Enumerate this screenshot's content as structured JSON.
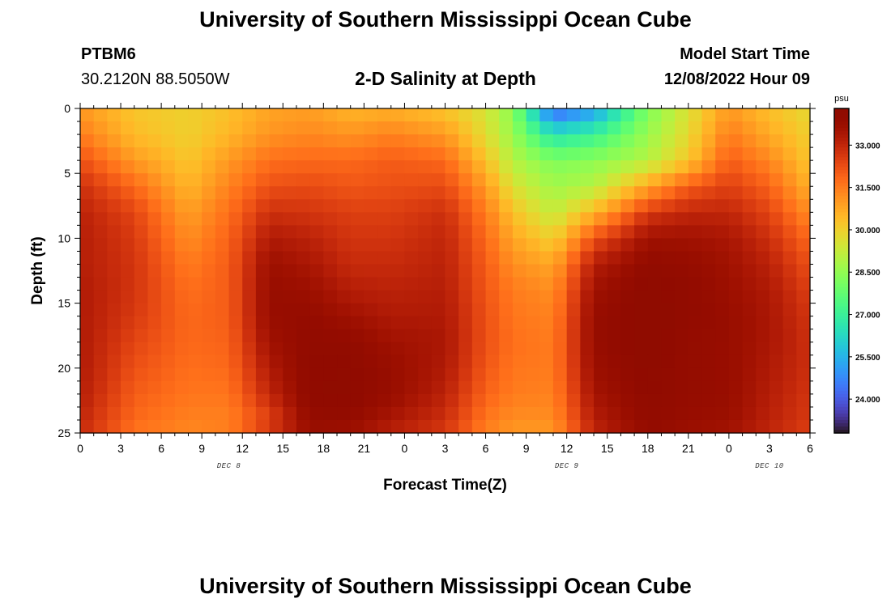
{
  "header": {
    "title": "University of Southern Mississippi Ocean Cube",
    "station_id": "PTBM6",
    "station_coords": "30.2120N  88.5050W",
    "chart_heading": "2-D Salinity at Depth",
    "model_start_label": "Model Start Time",
    "model_start_value": "12/08/2022 Hour 09"
  },
  "footer": {
    "title": "University of Southern Mississippi Ocean Cube"
  },
  "chart_data": {
    "type": "heatmap",
    "title": "2-D Salinity at Depth",
    "xlabel": "Forecast Time(Z)",
    "ylabel": "Depth (ft)",
    "x_hours_range": [
      0,
      54
    ],
    "x_tick_labels": [
      "0",
      "3",
      "6",
      "9",
      "12",
      "15",
      "18",
      "21",
      "0",
      "3",
      "6",
      "9",
      "12",
      "15",
      "18",
      "21",
      "0",
      "3",
      "6"
    ],
    "x_tick_hours": [
      0,
      3,
      6,
      9,
      12,
      15,
      18,
      21,
      24,
      27,
      30,
      33,
      36,
      39,
      42,
      45,
      48,
      51,
      54
    ],
    "date_labels": [
      {
        "label": "DEC 8",
        "hour": 11
      },
      {
        "label": "DEC 9",
        "hour": 36
      },
      {
        "label": "DEC 10",
        "hour": 51
      }
    ],
    "ylim": [
      0,
      25
    ],
    "y_ticks": [
      0,
      5,
      10,
      15,
      20,
      25
    ],
    "y_inverted": true,
    "colorbar": {
      "unit": "psu",
      "min": 22.8,
      "max": 34.3,
      "ticks": [
        33.0,
        31.5,
        30.0,
        28.5,
        27.0,
        25.5,
        24.0
      ],
      "tick_labels": [
        "33.000",
        "31.500",
        "30.000",
        "28.500",
        "27.000",
        "25.500",
        "24.000"
      ],
      "colormap": "turbo"
    },
    "grid": {
      "nx": 54,
      "ny": 25,
      "depth_profile_ft": [
        0,
        2,
        4,
        6,
        8,
        10,
        12,
        14,
        16,
        18,
        20,
        22,
        24,
        25
      ],
      "time_anchors": [
        {
          "hour": 0,
          "profile": [
            31.0,
            31.5,
            32.2,
            32.8,
            33.1,
            33.2,
            33.2,
            33.3,
            33.3,
            33.3,
            33.3,
            33.2,
            33.0,
            32.9
          ]
        },
        {
          "hour": 4,
          "profile": [
            30.2,
            30.4,
            31.0,
            31.8,
            32.4,
            32.6,
            32.7,
            32.7,
            32.6,
            32.4,
            32.2,
            32.0,
            31.8,
            31.6
          ]
        },
        {
          "hour": 8,
          "profile": [
            30.0,
            30.0,
            30.2,
            30.5,
            30.9,
            31.2,
            31.5,
            31.7,
            31.8,
            31.8,
            31.7,
            31.6,
            31.4,
            31.3
          ]
        },
        {
          "hour": 11,
          "profile": [
            30.3,
            30.5,
            31.0,
            31.4,
            31.7,
            31.9,
            32.0,
            32.0,
            32.0,
            31.9,
            31.8,
            31.6,
            31.4,
            31.5
          ]
        },
        {
          "hour": 14,
          "profile": [
            30.8,
            31.1,
            31.7,
            32.2,
            32.8,
            33.3,
            33.7,
            33.8,
            33.8,
            33.6,
            33.3,
            33.0,
            32.4,
            32.8
          ]
        },
        {
          "hour": 17,
          "profile": [
            30.9,
            31.3,
            31.8,
            32.3,
            32.7,
            33.1,
            33.4,
            33.7,
            33.9,
            34.0,
            34.1,
            34.1,
            33.9,
            33.7
          ]
        },
        {
          "hour": 20,
          "profile": [
            30.5,
            31.1,
            31.8,
            32.1,
            32.5,
            32.7,
            32.9,
            33.2,
            33.6,
            34.0,
            34.1,
            34.2,
            33.9,
            33.6
          ]
        },
        {
          "hour": 23,
          "profile": [
            30.6,
            31.4,
            32.0,
            32.2,
            32.5,
            32.7,
            32.9,
            33.1,
            33.3,
            33.6,
            33.8,
            33.8,
            33.4,
            33.1
          ]
        },
        {
          "hour": 27,
          "profile": [
            30.2,
            31.0,
            31.8,
            32.3,
            32.8,
            33.0,
            33.1,
            33.2,
            33.3,
            33.4,
            33.3,
            33.1,
            32.8,
            32.6
          ]
        },
        {
          "hour": 30,
          "profile": [
            29.5,
            29.7,
            30.3,
            31.0,
            31.5,
            31.8,
            32.0,
            32.1,
            32.2,
            32.2,
            32.1,
            31.9,
            31.6,
            31.4
          ]
        },
        {
          "hour": 32,
          "profile": [
            28.4,
            28.6,
            29.0,
            29.6,
            30.3,
            30.8,
            31.2,
            31.5,
            31.6,
            31.7,
            31.6,
            31.5,
            31.2,
            31.0
          ]
        },
        {
          "hour": 35,
          "profile": [
            24.0,
            26.5,
            28.2,
            28.7,
            29.2,
            30.0,
            30.8,
            31.2,
            31.4,
            31.5,
            31.5,
            31.4,
            31.2,
            31.0
          ]
        },
        {
          "hour": 38,
          "profile": [
            25.0,
            27.0,
            28.4,
            29.0,
            30.5,
            32.2,
            33.2,
            33.6,
            33.8,
            33.8,
            33.7,
            33.5,
            33.2,
            33.0
          ]
        },
        {
          "hour": 42,
          "profile": [
            28.2,
            28.6,
            29.0,
            30.8,
            32.6,
            33.6,
            34.0,
            34.2,
            34.3,
            34.3,
            34.2,
            34.1,
            34.0,
            33.9
          ]
        },
        {
          "hour": 45,
          "profile": [
            29.6,
            29.8,
            30.2,
            32.0,
            33.0,
            33.6,
            33.9,
            34.0,
            34.0,
            33.9,
            33.9,
            33.9,
            33.8,
            33.7
          ]
        },
        {
          "hour": 48,
          "profile": [
            31.0,
            31.5,
            32.0,
            32.5,
            33.0,
            33.4,
            33.6,
            33.7,
            33.8,
            33.8,
            33.8,
            33.8,
            33.7,
            33.5
          ]
        },
        {
          "hour": 51,
          "profile": [
            30.3,
            30.7,
            31.3,
            31.9,
            32.4,
            32.8,
            33.1,
            33.3,
            33.4,
            33.4,
            33.3,
            33.2,
            33.1,
            33.0
          ]
        },
        {
          "hour": 54,
          "profile": [
            29.8,
            30.0,
            30.2,
            30.6,
            31.2,
            31.8,
            32.2,
            32.5,
            32.7,
            32.8,
            32.8,
            32.7,
            32.6,
            32.5
          ]
        }
      ]
    }
  }
}
